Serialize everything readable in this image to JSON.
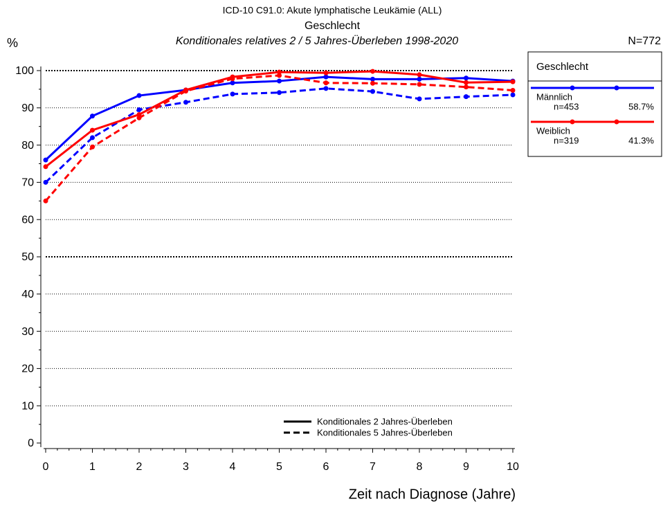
{
  "chart_data": {
    "type": "line",
    "title": "ICD-10 C91.0: Akute lymphatische Leukämie (ALL)",
    "subtitle": "Geschlecht",
    "subtitle2": "Konditionales relatives 2 / 5 Jahres-Überleben 1998-2020",
    "y_label": "%",
    "total": "N=772",
    "x_label": "Zeit nach Diagnose (Jahre)",
    "legend_title": "Geschlecht",
    "line_styles": [
      {
        "label": "Konditionales 2 Jahres-Überleben",
        "dashed": false
      },
      {
        "label": "Konditionales 5 Jahres-Überleben",
        "dashed": true
      }
    ],
    "x": [
      0,
      1,
      2,
      3,
      4,
      5,
      6,
      7,
      8,
      9,
      10
    ],
    "series": [
      {
        "name": "Männlich",
        "color": "#0000ff",
        "n": "n=453",
        "share": "58.7%",
        "values": [
          76,
          87.8,
          93.3,
          94.8,
          96.7,
          97.2,
          98.3,
          97.7,
          97.7,
          98,
          97.2
        ],
        "values_5": [
          70,
          82,
          89.5,
          91.5,
          93.7,
          94.1,
          95.2,
          94.4,
          92.4,
          93,
          93.5
        ]
      },
      {
        "name": "Weiblich",
        "color": "#ff0000",
        "n": "n=319",
        "share": "41.3%",
        "values": [
          74.2,
          84,
          88.2,
          94.8,
          98.3,
          99.6,
          99.4,
          99.8,
          98.9,
          96.8,
          97
        ],
        "values_5": [
          65,
          79.5,
          87.3,
          94.5,
          97.8,
          98.7,
          96.7,
          96.6,
          96.3,
          95.6,
          94.7
        ]
      }
    ],
    "xlim": [
      0,
      10
    ],
    "xticks": [
      0,
      1,
      2,
      3,
      4,
      5,
      6,
      7,
      8,
      9,
      10
    ],
    "ylim": [
      0,
      100
    ],
    "yticks": [
      0,
      10,
      20,
      30,
      40,
      50,
      60,
      70,
      80,
      90,
      100
    ],
    "grid": true
  }
}
